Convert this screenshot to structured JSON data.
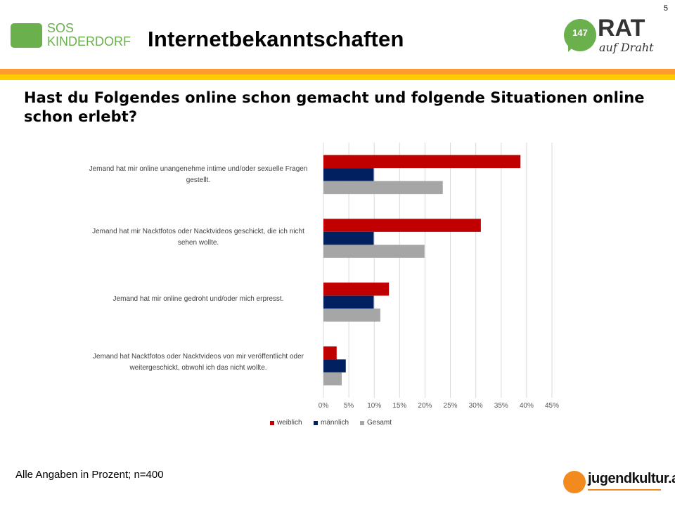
{
  "slide_number": "5",
  "header": {
    "title": "Internetbekanntschaften",
    "left_logo": {
      "line1": "SOS",
      "line2": "KINDERDORF"
    },
    "right_logo": {
      "badge": "147",
      "name": "RAT",
      "sub": "auf Draht"
    }
  },
  "question": "Hast du Folgendes online schon gemacht und folgende Situationen online schon erlebt?",
  "footnote": "Alle Angaben in Prozent; n=400",
  "footer_logo": "jugendkultur.at",
  "colors": {
    "weiblich": "#c00000",
    "maennlich": "#002060",
    "gesamt": "#a6a6a6",
    "band_orange": "#ff9933",
    "band_yellow": "#ffcc00"
  },
  "chart_data": {
    "type": "bar",
    "orientation": "horizontal",
    "categories": [
      "Jemand hat mir online unangenehme intime und/oder sexuelle Fragen gestellt.",
      "Jemand hat mir Nacktfotos oder Nacktvideos geschickt, die ich nicht sehen wollte.",
      "Jemand hat mir online gedroht und/oder mich erpresst.",
      "Jemand hat Nacktfotos oder Nacktvideos von mir veröffentlicht oder weitergeschickt, obwohl ich das nicht wollte."
    ],
    "series": [
      {
        "name": "weiblich",
        "values": [
          38.8,
          31.0,
          12.9,
          2.6
        ]
      },
      {
        "name": "männlich",
        "values": [
          9.9,
          9.9,
          9.9,
          4.4
        ]
      },
      {
        "name": "Gesamt",
        "values": [
          23.5,
          19.9,
          11.2,
          3.6
        ]
      }
    ],
    "xlim": [
      0,
      45
    ],
    "xticks": [
      "0%",
      "5%",
      "10%",
      "15%",
      "20%",
      "25%",
      "30%",
      "35%",
      "40%",
      "45%"
    ],
    "grid": true,
    "legend_position": "bottom"
  }
}
